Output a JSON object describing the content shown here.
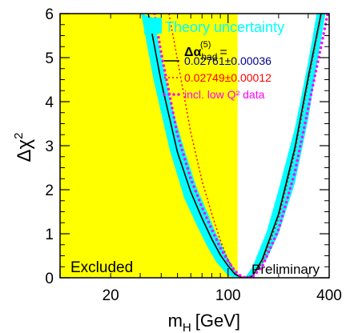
{
  "chart_data": {
    "type": "line",
    "xscale": "log",
    "xlim": [
      10,
      400
    ],
    "ylim": [
      0,
      6
    ],
    "xlabel": "m",
    "xlabel_sub": "H",
    "xlabel_unit": "[GeV]",
    "ylabel": "Δχ",
    "ylabel_sup": "2",
    "xticklabels": [
      {
        "value": 20,
        "label": "20"
      },
      {
        "value": 100,
        "label": "100"
      },
      {
        "value": 400,
        "label": "400"
      }
    ],
    "yticklabels": [
      {
        "value": 0,
        "label": "0"
      },
      {
        "value": 1,
        "label": "1"
      },
      {
        "value": 2,
        "label": "2"
      },
      {
        "value": 3,
        "label": "3"
      },
      {
        "value": 4,
        "label": "4"
      },
      {
        "value": 5,
        "label": "5"
      },
      {
        "value": 6,
        "label": "6"
      }
    ],
    "excluded_region": {
      "x_max": 114,
      "label": "Excluded",
      "color": "#ffff00"
    },
    "annotation": "Preliminary",
    "legend": {
      "band_label": "Theory uncertainty",
      "header": "Δα",
      "header_sup": "(5)",
      "header_sub": "had",
      "header_eq": "=",
      "placement": "top-right"
    },
    "band": {
      "name": "Theory uncertainty",
      "color": "#00ffff",
      "x": [
        30.4,
        36,
        45,
        55,
        65,
        75,
        85,
        100,
        110,
        114,
        126,
        140,
        170,
        200,
        250,
        300,
        337,
        380
      ],
      "lower": [
        6.0,
        4.5,
        2.9,
        1.8,
        1.2,
        0.72,
        0.36,
        0.05,
        0.0,
        0.0,
        0.0,
        0.02,
        0.42,
        1.0,
        2.15,
        3.6,
        4.8,
        6.0
      ],
      "upper": [
        6.0,
        5.9,
        4.05,
        2.9,
        2.05,
        1.5,
        1.0,
        0.45,
        0.18,
        0.08,
        0.0,
        0.25,
        1.05,
        2.0,
        3.4,
        4.9,
        6.0,
        6.0
      ]
    },
    "series": [
      {
        "name": "0.02761±0.00036",
        "color": "#000000",
        "style": "solid",
        "x": [
          33.5,
          40,
          50,
          60,
          70,
          80,
          90,
          100,
          110,
          120,
          126,
          140,
          160,
          200,
          250,
          300,
          358
        ],
        "y": [
          6.0,
          4.45,
          2.85,
          1.95,
          1.35,
          0.88,
          0.52,
          0.27,
          0.08,
          0.01,
          0.0,
          0.04,
          0.42,
          1.45,
          2.95,
          4.55,
          6.0
        ]
      },
      {
        "name": "0.02749±0.00012",
        "color": "#ff0000",
        "style": "dotted",
        "x": [
          44.5,
          50,
          60,
          70,
          80,
          90,
          100,
          110,
          120,
          130,
          140,
          160,
          200,
          250,
          300,
          360
        ],
        "y": [
          6.0,
          4.95,
          3.3,
          2.2,
          1.45,
          0.85,
          0.4,
          0.12,
          0.01,
          0.0,
          0.04,
          0.35,
          1.35,
          2.85,
          4.45,
          6.0
        ]
      },
      {
        "name": "incl. low Q² data",
        "color": "#ff00ff",
        "style": "dotted-thick",
        "x": [
          36.5,
          40,
          50,
          60,
          70,
          80,
          90,
          100,
          110,
          120,
          130,
          140,
          160,
          200,
          250,
          300,
          360,
          392
        ],
        "y": [
          6.0,
          5.1,
          3.25,
          2.25,
          1.6,
          1.1,
          0.68,
          0.38,
          0.15,
          0.03,
          0.0,
          0.02,
          0.26,
          1.1,
          2.4,
          3.85,
          5.3,
          6.0
        ]
      }
    ]
  }
}
